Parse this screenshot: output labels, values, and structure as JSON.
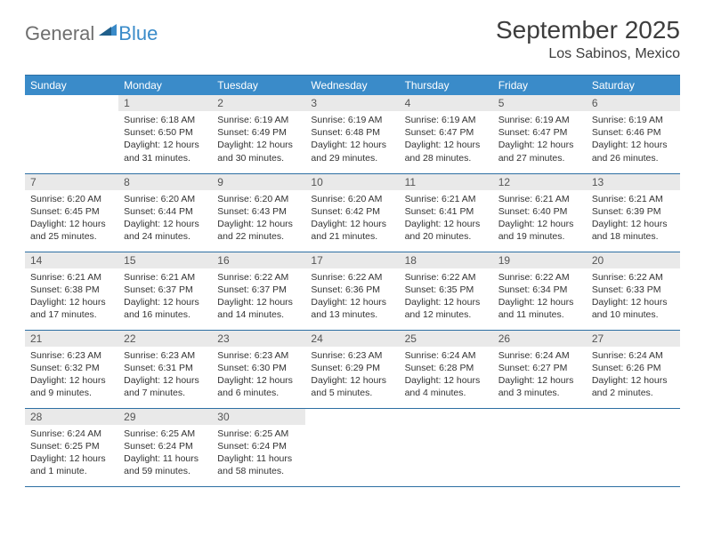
{
  "brand": {
    "part1": "General",
    "part2": "Blue"
  },
  "title": "September 2025",
  "location": "Los Sabinos, Mexico",
  "colors": {
    "header_bg": "#3a8bc9",
    "header_text": "#ffffff",
    "daynum_bg": "#e9e9e9",
    "border": "#2d6fa3",
    "logo_gray": "#6f6f6f",
    "logo_blue": "#3a8bc9"
  },
  "weekdays": [
    "Sunday",
    "Monday",
    "Tuesday",
    "Wednesday",
    "Thursday",
    "Friday",
    "Saturday"
  ],
  "weeks": [
    [
      {
        "n": "",
        "sr": "",
        "ss": "",
        "dl": "",
        "empty": true
      },
      {
        "n": "1",
        "sr": "Sunrise: 6:18 AM",
        "ss": "Sunset: 6:50 PM",
        "dl": "Daylight: 12 hours and 31 minutes."
      },
      {
        "n": "2",
        "sr": "Sunrise: 6:19 AM",
        "ss": "Sunset: 6:49 PM",
        "dl": "Daylight: 12 hours and 30 minutes."
      },
      {
        "n": "3",
        "sr": "Sunrise: 6:19 AM",
        "ss": "Sunset: 6:48 PM",
        "dl": "Daylight: 12 hours and 29 minutes."
      },
      {
        "n": "4",
        "sr": "Sunrise: 6:19 AM",
        "ss": "Sunset: 6:47 PM",
        "dl": "Daylight: 12 hours and 28 minutes."
      },
      {
        "n": "5",
        "sr": "Sunrise: 6:19 AM",
        "ss": "Sunset: 6:47 PM",
        "dl": "Daylight: 12 hours and 27 minutes."
      },
      {
        "n": "6",
        "sr": "Sunrise: 6:19 AM",
        "ss": "Sunset: 6:46 PM",
        "dl": "Daylight: 12 hours and 26 minutes."
      }
    ],
    [
      {
        "n": "7",
        "sr": "Sunrise: 6:20 AM",
        "ss": "Sunset: 6:45 PM",
        "dl": "Daylight: 12 hours and 25 minutes."
      },
      {
        "n": "8",
        "sr": "Sunrise: 6:20 AM",
        "ss": "Sunset: 6:44 PM",
        "dl": "Daylight: 12 hours and 24 minutes."
      },
      {
        "n": "9",
        "sr": "Sunrise: 6:20 AM",
        "ss": "Sunset: 6:43 PM",
        "dl": "Daylight: 12 hours and 22 minutes."
      },
      {
        "n": "10",
        "sr": "Sunrise: 6:20 AM",
        "ss": "Sunset: 6:42 PM",
        "dl": "Daylight: 12 hours and 21 minutes."
      },
      {
        "n": "11",
        "sr": "Sunrise: 6:21 AM",
        "ss": "Sunset: 6:41 PM",
        "dl": "Daylight: 12 hours and 20 minutes."
      },
      {
        "n": "12",
        "sr": "Sunrise: 6:21 AM",
        "ss": "Sunset: 6:40 PM",
        "dl": "Daylight: 12 hours and 19 minutes."
      },
      {
        "n": "13",
        "sr": "Sunrise: 6:21 AM",
        "ss": "Sunset: 6:39 PM",
        "dl": "Daylight: 12 hours and 18 minutes."
      }
    ],
    [
      {
        "n": "14",
        "sr": "Sunrise: 6:21 AM",
        "ss": "Sunset: 6:38 PM",
        "dl": "Daylight: 12 hours and 17 minutes."
      },
      {
        "n": "15",
        "sr": "Sunrise: 6:21 AM",
        "ss": "Sunset: 6:37 PM",
        "dl": "Daylight: 12 hours and 16 minutes."
      },
      {
        "n": "16",
        "sr": "Sunrise: 6:22 AM",
        "ss": "Sunset: 6:37 PM",
        "dl": "Daylight: 12 hours and 14 minutes."
      },
      {
        "n": "17",
        "sr": "Sunrise: 6:22 AM",
        "ss": "Sunset: 6:36 PM",
        "dl": "Daylight: 12 hours and 13 minutes."
      },
      {
        "n": "18",
        "sr": "Sunrise: 6:22 AM",
        "ss": "Sunset: 6:35 PM",
        "dl": "Daylight: 12 hours and 12 minutes."
      },
      {
        "n": "19",
        "sr": "Sunrise: 6:22 AM",
        "ss": "Sunset: 6:34 PM",
        "dl": "Daylight: 12 hours and 11 minutes."
      },
      {
        "n": "20",
        "sr": "Sunrise: 6:22 AM",
        "ss": "Sunset: 6:33 PM",
        "dl": "Daylight: 12 hours and 10 minutes."
      }
    ],
    [
      {
        "n": "21",
        "sr": "Sunrise: 6:23 AM",
        "ss": "Sunset: 6:32 PM",
        "dl": "Daylight: 12 hours and 9 minutes."
      },
      {
        "n": "22",
        "sr": "Sunrise: 6:23 AM",
        "ss": "Sunset: 6:31 PM",
        "dl": "Daylight: 12 hours and 7 minutes."
      },
      {
        "n": "23",
        "sr": "Sunrise: 6:23 AM",
        "ss": "Sunset: 6:30 PM",
        "dl": "Daylight: 12 hours and 6 minutes."
      },
      {
        "n": "24",
        "sr": "Sunrise: 6:23 AM",
        "ss": "Sunset: 6:29 PM",
        "dl": "Daylight: 12 hours and 5 minutes."
      },
      {
        "n": "25",
        "sr": "Sunrise: 6:24 AM",
        "ss": "Sunset: 6:28 PM",
        "dl": "Daylight: 12 hours and 4 minutes."
      },
      {
        "n": "26",
        "sr": "Sunrise: 6:24 AM",
        "ss": "Sunset: 6:27 PM",
        "dl": "Daylight: 12 hours and 3 minutes."
      },
      {
        "n": "27",
        "sr": "Sunrise: 6:24 AM",
        "ss": "Sunset: 6:26 PM",
        "dl": "Daylight: 12 hours and 2 minutes."
      }
    ],
    [
      {
        "n": "28",
        "sr": "Sunrise: 6:24 AM",
        "ss": "Sunset: 6:25 PM",
        "dl": "Daylight: 12 hours and 1 minute."
      },
      {
        "n": "29",
        "sr": "Sunrise: 6:25 AM",
        "ss": "Sunset: 6:24 PM",
        "dl": "Daylight: 11 hours and 59 minutes."
      },
      {
        "n": "30",
        "sr": "Sunrise: 6:25 AM",
        "ss": "Sunset: 6:24 PM",
        "dl": "Daylight: 11 hours and 58 minutes."
      },
      {
        "n": "",
        "sr": "",
        "ss": "",
        "dl": "",
        "empty": true
      },
      {
        "n": "",
        "sr": "",
        "ss": "",
        "dl": "",
        "empty": true
      },
      {
        "n": "",
        "sr": "",
        "ss": "",
        "dl": "",
        "empty": true
      },
      {
        "n": "",
        "sr": "",
        "ss": "",
        "dl": "",
        "empty": true
      }
    ]
  ]
}
